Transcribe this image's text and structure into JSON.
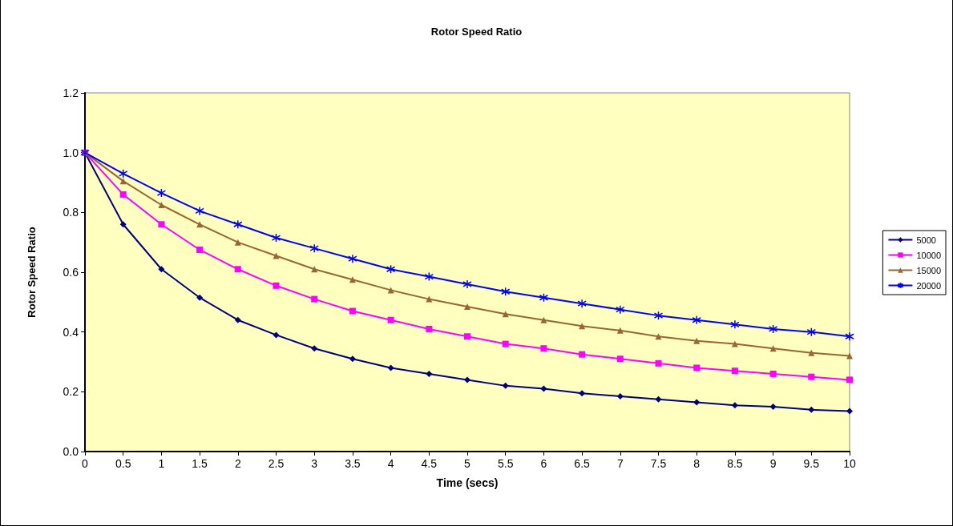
{
  "chart_data": {
    "type": "line",
    "title": "Rotor Speed Ratio",
    "xlabel": "Time (secs)",
    "ylabel": "Rotor Speed Ratio",
    "x": [
      0,
      0.5,
      1,
      1.5,
      2,
      2.5,
      3,
      3.5,
      4,
      4.5,
      5,
      5.5,
      6,
      6.5,
      7,
      7.5,
      8,
      8.5,
      9,
      9.5,
      10
    ],
    "series": [
      {
        "name": "5000",
        "color": "#000080",
        "marker": "diamond",
        "values": [
          1.0,
          0.76,
          0.61,
          0.515,
          0.44,
          0.39,
          0.345,
          0.31,
          0.28,
          0.26,
          0.24,
          0.22,
          0.21,
          0.195,
          0.185,
          0.175,
          0.165,
          0.155,
          0.15,
          0.14,
          0.135
        ]
      },
      {
        "name": "10000",
        "color": "#ff00ff",
        "marker": "square",
        "values": [
          1.0,
          0.86,
          0.76,
          0.675,
          0.61,
          0.555,
          0.51,
          0.47,
          0.44,
          0.41,
          0.385,
          0.36,
          0.345,
          0.325,
          0.31,
          0.295,
          0.28,
          0.27,
          0.26,
          0.25,
          0.24
        ]
      },
      {
        "name": "15000",
        "color": "#996633",
        "marker": "triangle",
        "values": [
          1.0,
          0.905,
          0.825,
          0.76,
          0.7,
          0.655,
          0.61,
          0.575,
          0.54,
          0.51,
          0.485,
          0.46,
          0.44,
          0.42,
          0.405,
          0.385,
          0.37,
          0.36,
          0.345,
          0.33,
          0.32
        ]
      },
      {
        "name": "20000",
        "color": "#0000ff",
        "marker": "cross",
        "values": [
          1.0,
          0.93,
          0.865,
          0.805,
          0.76,
          0.715,
          0.68,
          0.645,
          0.61,
          0.585,
          0.56,
          0.535,
          0.515,
          0.495,
          0.475,
          0.455,
          0.44,
          0.425,
          0.41,
          0.4,
          0.385
        ]
      }
    ],
    "xlim": [
      0,
      10
    ],
    "xticks": [
      0,
      0.5,
      1,
      1.5,
      2,
      2.5,
      3,
      3.5,
      4,
      4.5,
      5,
      5.5,
      6,
      6.5,
      7,
      7.5,
      8,
      8.5,
      9,
      9.5,
      10
    ],
    "ylim": [
      0,
      1.2
    ],
    "yticks": [
      {
        "value": 0,
        "label": "0.0"
      },
      {
        "value": 0.2,
        "label": "0.2"
      },
      {
        "value": 0.4,
        "label": "0.4"
      },
      {
        "value": 0.6,
        "label": "0.6"
      },
      {
        "value": 0.8,
        "label": "0.8"
      },
      {
        "value": 1,
        "label": "1.0"
      },
      {
        "value": 1.2,
        "label": "1.2"
      }
    ],
    "grid": false,
    "legend": "right",
    "line_style": "solid"
  }
}
